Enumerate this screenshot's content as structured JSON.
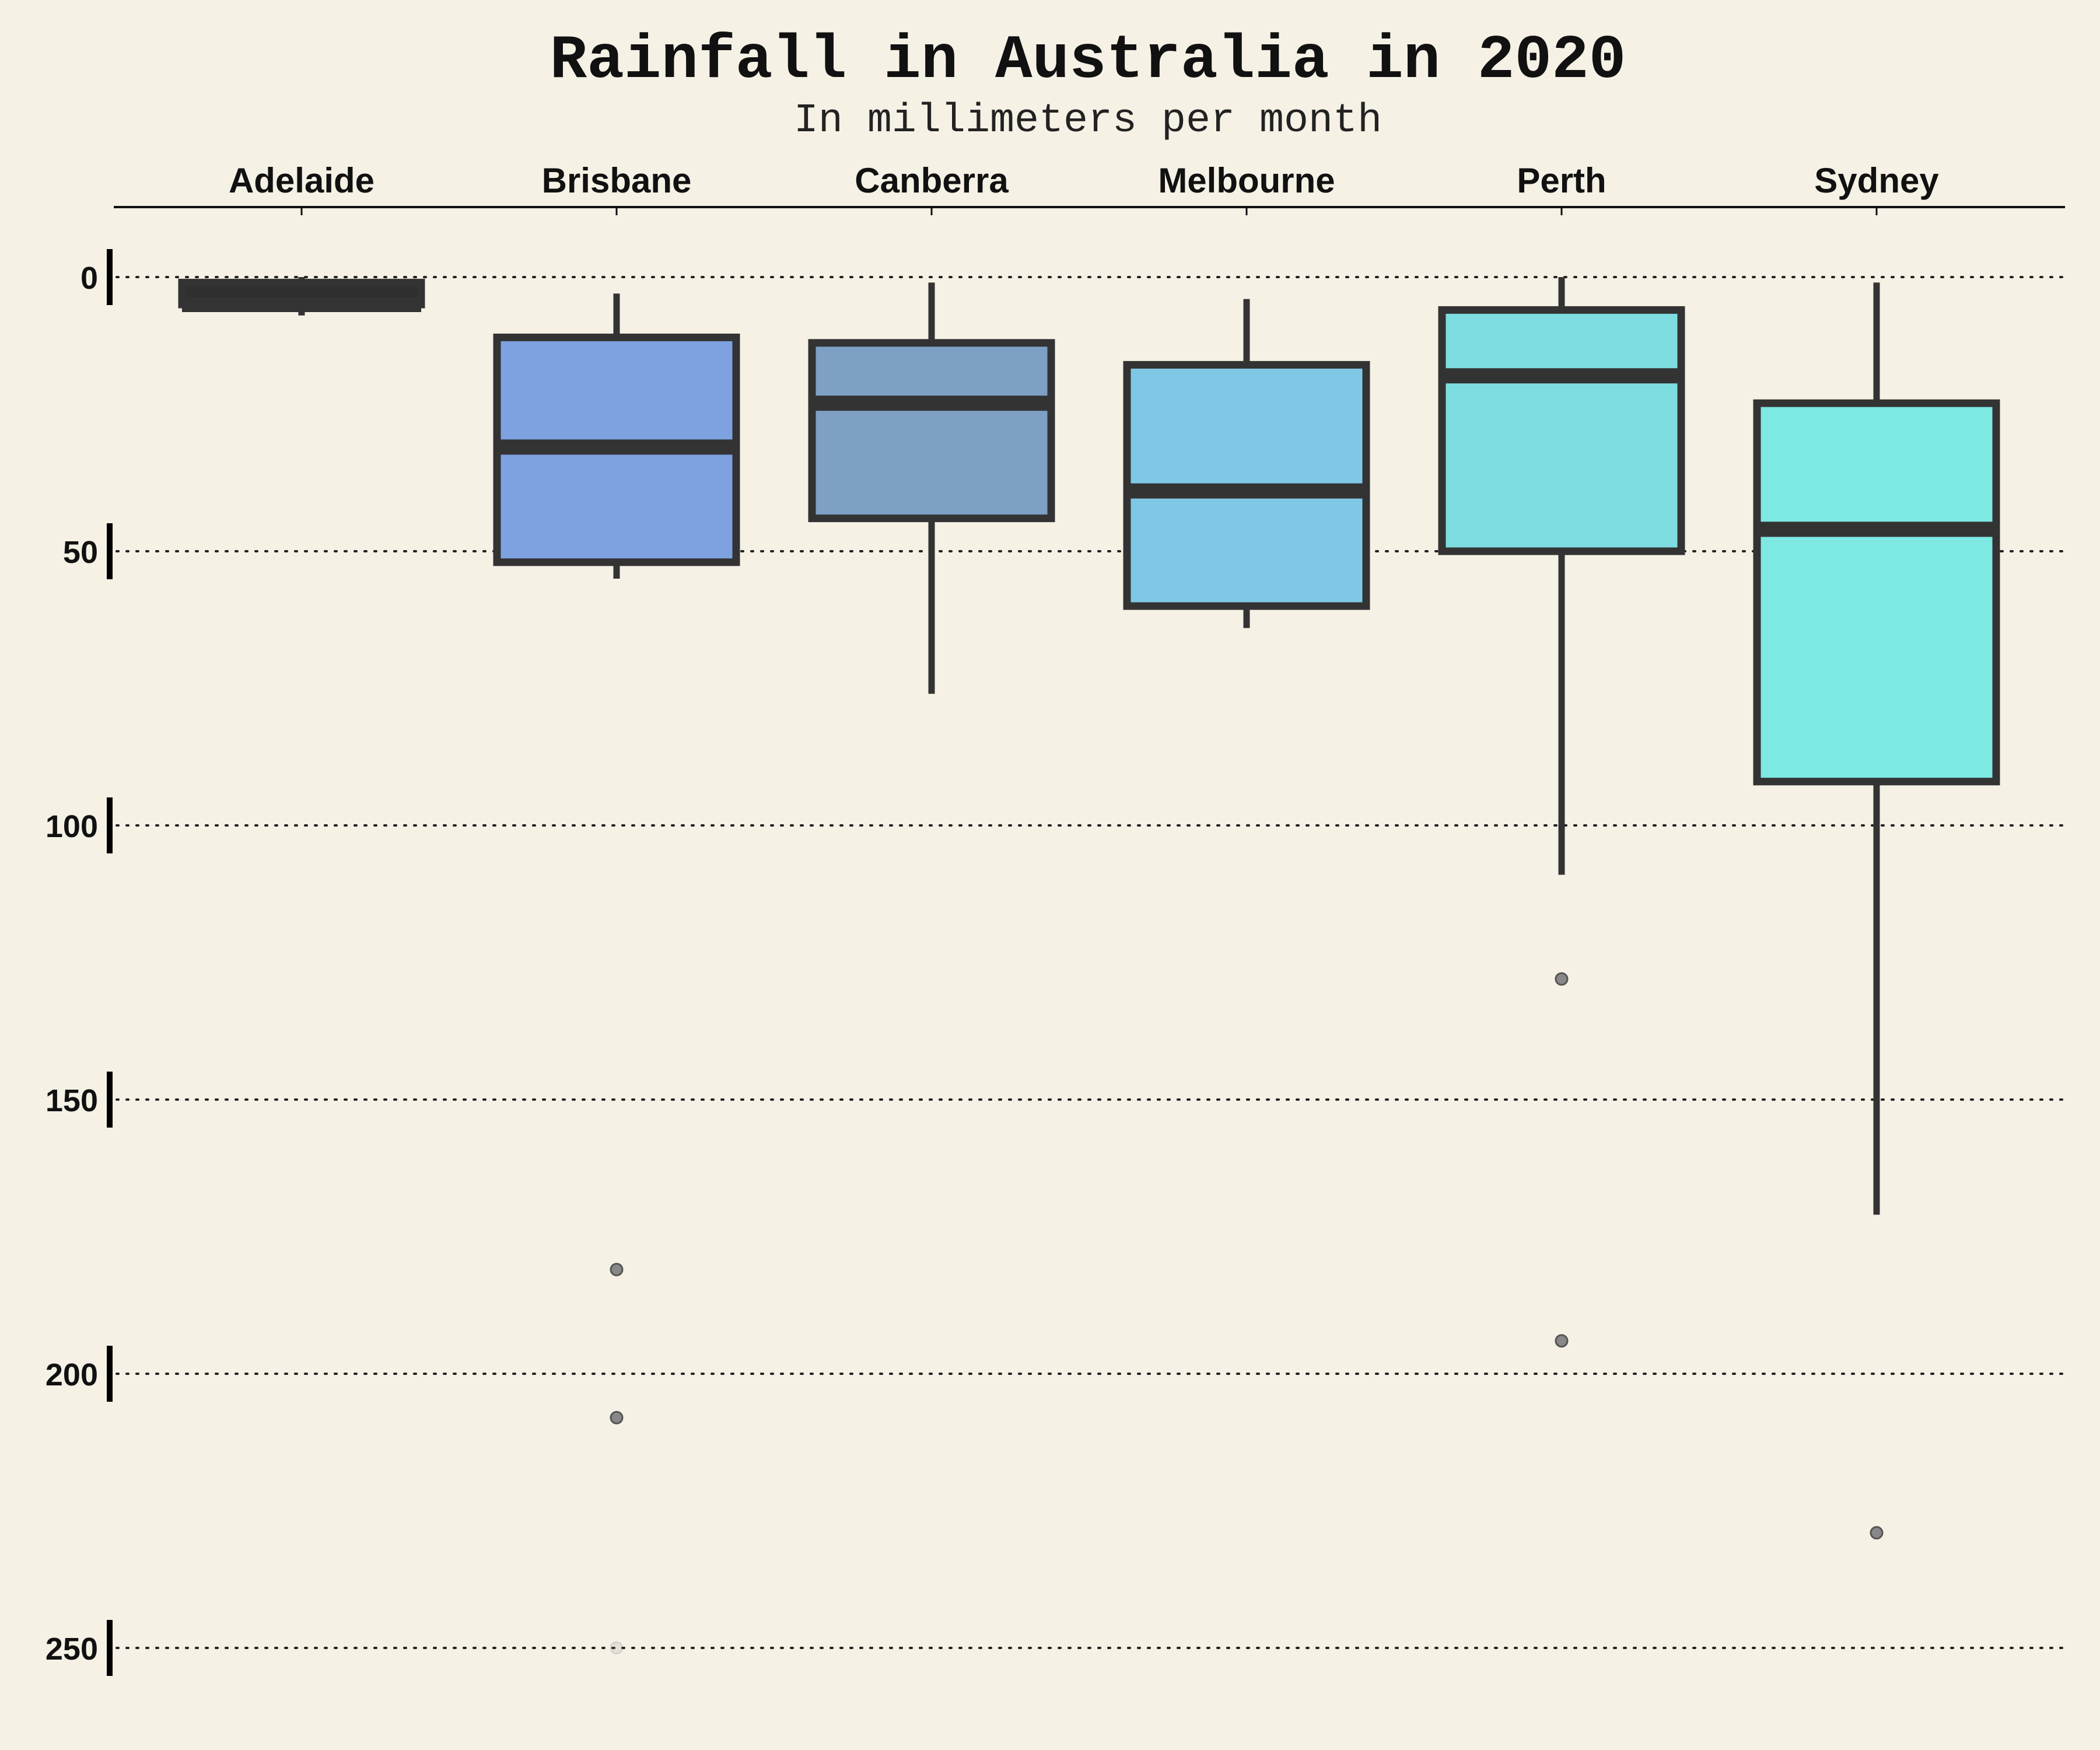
{
  "chart_data": {
    "type": "boxplot",
    "title": "Rainfall in Australia in 2020",
    "subtitle": "In millimeters per month",
    "xlabel": "",
    "ylabel": "",
    "categories": [
      "Adelaide",
      "Brisbane",
      "Canberra",
      "Melbourne",
      "Perth",
      "Sydney"
    ],
    "y_axis": {
      "range": [
        -8,
        262
      ],
      "inverted": true,
      "ticks": [
        0,
        50,
        100,
        150,
        200,
        250
      ]
    },
    "grid": "horizontal dotted",
    "x_axis_position": "top",
    "boxes": [
      {
        "category": "Adelaide",
        "whisker_low": 0,
        "q1": 1,
        "median": 5,
        "q3": 5,
        "whisker_high": 7,
        "outliers": [],
        "color": "#2f2f2f"
      },
      {
        "category": "Brisbane",
        "whisker_low": 3,
        "q1": 11,
        "median": 31,
        "q3": 52,
        "whisker_high": 55,
        "outliers": [
          181,
          208,
          250
        ],
        "color": "#7ea1e0"
      },
      {
        "category": "Canberra",
        "whisker_low": 1,
        "q1": 12,
        "median": 23,
        "q3": 44,
        "whisker_high": 76,
        "outliers": [],
        "color": "#7ea0c5"
      },
      {
        "category": "Melbourne",
        "whisker_low": 4,
        "q1": 16,
        "median": 39,
        "q3": 60,
        "whisker_high": 64,
        "outliers": [],
        "color": "#7ec8e6"
      },
      {
        "category": "Perth",
        "whisker_low": 0,
        "q1": 6,
        "median": 18,
        "q3": 50,
        "whisker_high": 109,
        "outliers": [
          128,
          194
        ],
        "color": "#7edde0"
      },
      {
        "category": "Sydney",
        "whisker_low": 1,
        "q1": 23,
        "median": 46,
        "q3": 92,
        "whisker_high": 171,
        "outliers": [
          229
        ],
        "color": "#7ee8e3"
      }
    ]
  }
}
